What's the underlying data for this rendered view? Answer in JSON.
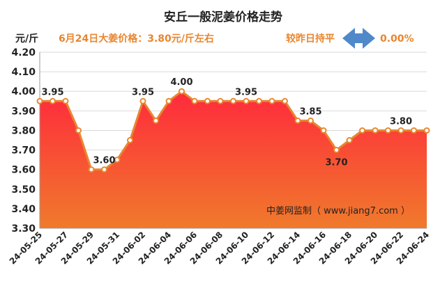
{
  "header": {
    "title": "安丘一般泥姜价格走势",
    "unit": "元/斤",
    "headline": "6月24日大姜价格：3.80元/斤左右",
    "compare_label": "较昨日持平",
    "compare_value": "0.00%",
    "watermark": "中姜网监制（ www.jiang7.com ）"
  },
  "colors": {
    "line": "#e8862f",
    "area_top": "#ff2a3c",
    "area_bottom": "#f07a2c",
    "headline": "#e8862f",
    "arrow": "#4f89c9"
  },
  "chart_data": {
    "type": "area",
    "x": [
      "24-05-25",
      "24-05-26",
      "24-05-27",
      "24-05-28",
      "24-05-29",
      "24-05-30",
      "24-05-31",
      "24-06-01",
      "24-06-02",
      "24-06-03",
      "24-06-04",
      "24-06-05",
      "24-06-06",
      "24-06-07",
      "24-06-08",
      "24-06-09",
      "24-06-10",
      "24-06-11",
      "24-06-12",
      "24-06-13",
      "24-06-14",
      "24-06-15",
      "24-06-16",
      "24-06-17",
      "24-06-18",
      "24-06-19",
      "24-06-20",
      "24-06-21",
      "24-06-22",
      "24-06-23",
      "24-06-24"
    ],
    "values": [
      3.95,
      3.95,
      3.95,
      3.8,
      3.6,
      3.6,
      3.65,
      3.75,
      3.95,
      3.85,
      3.95,
      4.0,
      3.95,
      3.95,
      3.95,
      3.95,
      3.95,
      3.95,
      3.95,
      3.95,
      3.85,
      3.85,
      3.8,
      3.7,
      3.75,
      3.8,
      3.8,
      3.8,
      3.8,
      3.8,
      3.8
    ],
    "tick_labels": [
      "24-05-25",
      "24-05-27",
      "24-05-29",
      "24-05-31",
      "24-06-02",
      "24-06-04",
      "24-06-06",
      "24-06-08",
      "24-06-10",
      "24-06-12",
      "24-06-14",
      "24-06-16",
      "24-06-18",
      "24-06-20",
      "24-06-22",
      "24-06-24"
    ],
    "y_ticks": [
      "3.30",
      "3.40",
      "3.50",
      "3.60",
      "3.70",
      "3.80",
      "3.90",
      "4.00",
      "4.10",
      "4.20"
    ],
    "ylim": [
      3.3,
      4.2
    ],
    "data_labels": [
      {
        "x": "24-05-26",
        "text": "3.95"
      },
      {
        "x": "24-05-30",
        "text": "3.60"
      },
      {
        "x": "24-06-02",
        "text": "3.95"
      },
      {
        "x": "24-06-05",
        "text": "4.00"
      },
      {
        "x": "24-06-10",
        "text": "3.95"
      },
      {
        "x": "24-06-15",
        "text": "3.85"
      },
      {
        "x": "24-06-17",
        "text": "3.70"
      },
      {
        "x": "24-06-22",
        "text": "3.80"
      }
    ],
    "grid": "horizontal"
  }
}
